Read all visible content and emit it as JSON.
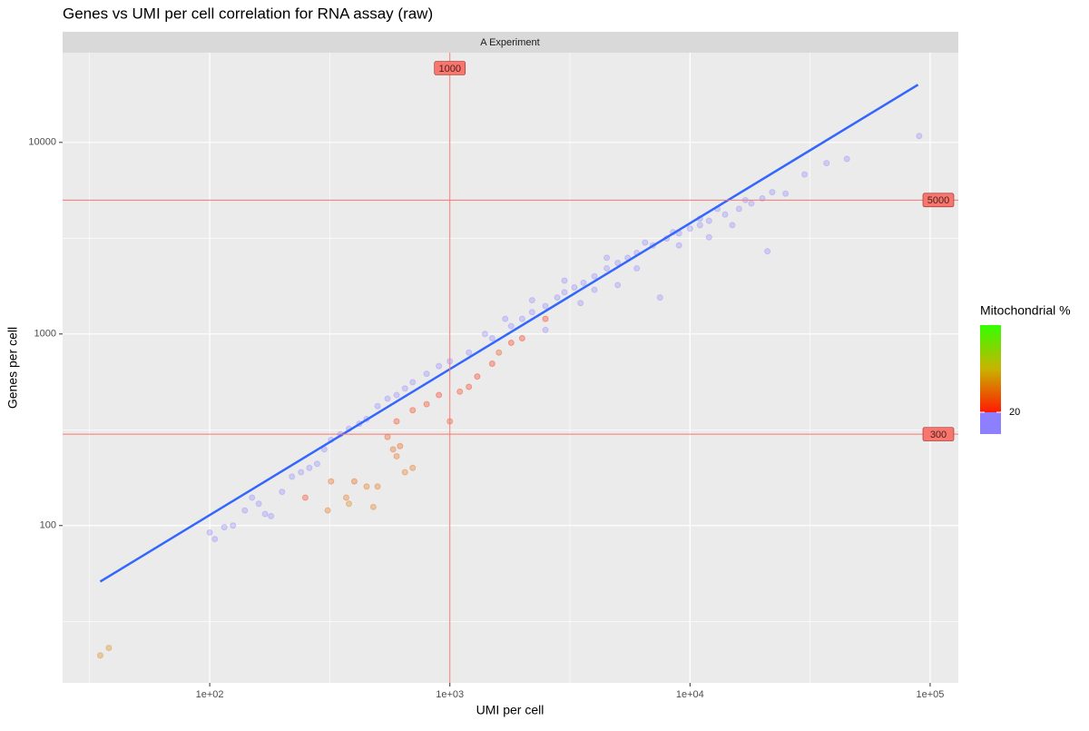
{
  "chart_data": {
    "type": "scatter",
    "title": "Genes vs UMI per cell correlation for RNA assay (raw)",
    "facet_label": "A Experiment",
    "x_label": "UMI per cell",
    "y_label": "Genes per cell",
    "x_log": true,
    "y_log": true,
    "grid": true,
    "xlim": [
      24.4,
      131000
    ],
    "ylim": [
      15.1,
      29400
    ],
    "xticks": [
      {
        "value": 100,
        "label": "1e+02"
      },
      {
        "value": 1000,
        "label": "1e+03"
      },
      {
        "value": 10000,
        "label": "1e+04"
      },
      {
        "value": 100000,
        "label": "1e+05"
      }
    ],
    "yticks": [
      100,
      1000,
      10000
    ],
    "x_minor_ticks": [
      31.62,
      316.2,
      3162,
      31620
    ],
    "y_minor_ticks": [
      31.62,
      316.2,
      3162
    ],
    "vlines": [
      1000
    ],
    "hlines": [
      5000,
      300
    ],
    "threshold_color": "#f8766d",
    "fit_line": {
      "x": [
        35,
        89000
      ],
      "y": [
        51,
        20000
      ],
      "color": "#3366ff"
    },
    "legend": {
      "title": "Mitochondrial %",
      "lim": [
        0,
        100
      ],
      "ticks": [
        20
      ],
      "break": 20,
      "low_color": "#8c80ff",
      "gradient": [
        "#ff1a00",
        "#c8b400",
        "#33ff00"
      ]
    },
    "points": {
      "x": [
        35,
        38,
        100,
        105,
        115,
        125,
        140,
        150,
        160,
        170,
        180,
        200,
        220,
        240,
        260,
        280,
        300,
        320,
        350,
        380,
        420,
        450,
        500,
        550,
        600,
        650,
        700,
        800,
        900,
        1000,
        250,
        310,
        320,
        370,
        380,
        400,
        450,
        480,
        500,
        550,
        580,
        600,
        620,
        650,
        700,
        600,
        700,
        800,
        900,
        1000,
        1100,
        1200,
        1300,
        1500,
        1800,
        2000,
        1600,
        2500,
        1200,
        1500,
        1800,
        2000,
        2200,
        2500,
        2800,
        3000,
        3300,
        3600,
        4000,
        4500,
        5000,
        5500,
        6000,
        7000,
        8000,
        9000,
        10000,
        11000,
        12000,
        14000,
        16000,
        18000,
        20000,
        22000,
        25000,
        30000,
        37000,
        45000,
        90000,
        21000,
        7500,
        5000,
        3500,
        2500,
        4000,
        6000,
        9000,
        12000,
        15000,
        1400,
        1700,
        2200,
        3000,
        4500,
        6500,
        8500,
        11000,
        13000,
        17000
      ],
      "y": [
        21,
        23,
        92,
        85,
        98,
        100,
        120,
        140,
        130,
        115,
        112,
        150,
        180,
        190,
        200,
        210,
        250,
        280,
        300,
        320,
        340,
        360,
        420,
        460,
        480,
        520,
        560,
        620,
        680,
        720,
        140,
        120,
        170,
        140,
        130,
        170,
        160,
        125,
        160,
        290,
        250,
        230,
        260,
        190,
        200,
        350,
        400,
        430,
        480,
        350,
        500,
        530,
        600,
        700,
        900,
        950,
        800,
        1200,
        800,
        950,
        1100,
        1200,
        1300,
        1400,
        1550,
        1650,
        1750,
        1850,
        2000,
        2200,
        2350,
        2500,
        2650,
        2900,
        3150,
        3350,
        3550,
        3700,
        3900,
        4200,
        4500,
        4800,
        5100,
        5500,
        5400,
        6800,
        7800,
        8200,
        10800,
        2700,
        1550,
        1800,
        1450,
        1050,
        1700,
        2200,
        2900,
        3200,
        3700,
        1000,
        1200,
        1500,
        1900,
        2500,
        3000,
        3400,
        4000,
        4500,
        5000
      ],
      "mito": [
        45,
        45,
        5,
        5,
        5,
        5,
        5,
        5,
        5,
        18,
        18,
        5,
        5,
        5,
        5,
        5,
        5,
        5,
        5,
        5,
        5,
        5,
        5,
        5,
        5,
        5,
        5,
        5,
        5,
        5,
        25,
        40,
        35,
        40,
        45,
        35,
        40,
        42,
        40,
        30,
        35,
        38,
        33,
        42,
        40,
        25,
        25,
        25,
        22,
        28,
        25,
        22,
        22,
        22,
        22,
        22,
        30,
        22,
        5,
        5,
        5,
        5,
        5,
        5,
        5,
        5,
        5,
        5,
        5,
        5,
        5,
        5,
        5,
        5,
        5,
        5,
        5,
        5,
        5,
        5,
        5,
        5,
        5,
        5,
        5,
        5,
        5,
        5,
        5,
        5,
        5,
        5,
        5,
        5,
        5,
        5,
        5,
        5,
        5,
        5,
        5,
        5,
        5,
        5,
        5,
        5,
        5,
        5,
        5
      ]
    }
  }
}
